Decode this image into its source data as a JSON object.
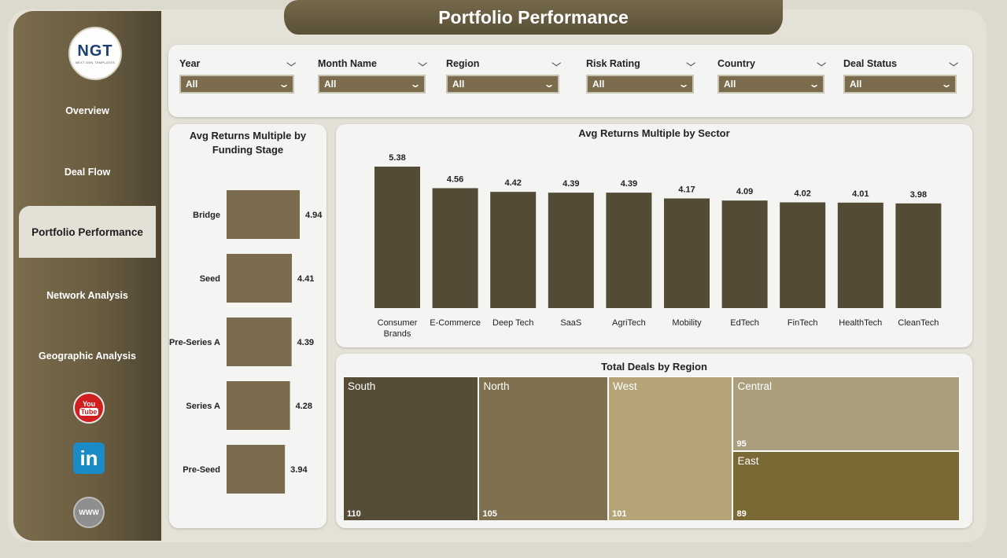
{
  "header": {
    "title": "Portfolio Performance"
  },
  "logo": {
    "main": "NGT",
    "sub": "NEXT GEN TEMPLATES"
  },
  "sidebar": {
    "items": [
      {
        "label": "Overview",
        "active": false
      },
      {
        "label": "Deal Flow",
        "active": false
      },
      {
        "label": "Portfolio Performance",
        "active": true
      },
      {
        "label": "Network Analysis",
        "active": false
      },
      {
        "label": "Geographic Analysis",
        "active": false
      }
    ],
    "social": [
      {
        "icon": "youtube-icon",
        "text_top": "You",
        "text_bottom": "Tube"
      },
      {
        "icon": "linkedin-icon",
        "text": "in"
      },
      {
        "icon": "globe-www-icon",
        "text": "WWW"
      }
    ]
  },
  "filters": [
    {
      "label": "Year",
      "value": "All"
    },
    {
      "label": "Month Name",
      "value": "All"
    },
    {
      "label": "Region",
      "value": "All"
    },
    {
      "label": "Risk Rating",
      "value": "All"
    },
    {
      "label": "Country",
      "value": "All"
    },
    {
      "label": "Deal Status",
      "value": "All"
    }
  ],
  "colors": {
    "accent": "#7a6c4c",
    "bar_stage": "#7a6c4c",
    "bar_sector": "#544b36"
  },
  "chart_data": [
    {
      "type": "bar",
      "orientation": "horizontal",
      "title": "Avg Returns Multiple by Funding Stage",
      "categories": [
        "Bridge",
        "Seed",
        "Pre-Series A",
        "Series A",
        "Pre-Seed"
      ],
      "values": [
        4.94,
        4.41,
        4.39,
        4.28,
        3.94
      ]
    },
    {
      "type": "bar",
      "orientation": "vertical",
      "title": "Avg Returns Multiple by Sector",
      "categories": [
        "Consumer Brands",
        "E-Commerce",
        "Deep Tech",
        "SaaS",
        "AgriTech",
        "Mobility",
        "EdTech",
        "FinTech",
        "HealthTech",
        "CleanTech"
      ],
      "values": [
        5.38,
        4.56,
        4.42,
        4.39,
        4.39,
        4.17,
        4.09,
        4.02,
        4.01,
        3.98
      ]
    },
    {
      "type": "treemap",
      "title": "Total Deals by Region",
      "categories": [
        "South",
        "North",
        "West",
        "Central",
        "East"
      ],
      "values": [
        110,
        105,
        101,
        95,
        89
      ],
      "colors": [
        "#564c37",
        "#7f704f",
        "#b4a478",
        "#aa9e7c",
        "#7a6835"
      ]
    }
  ]
}
